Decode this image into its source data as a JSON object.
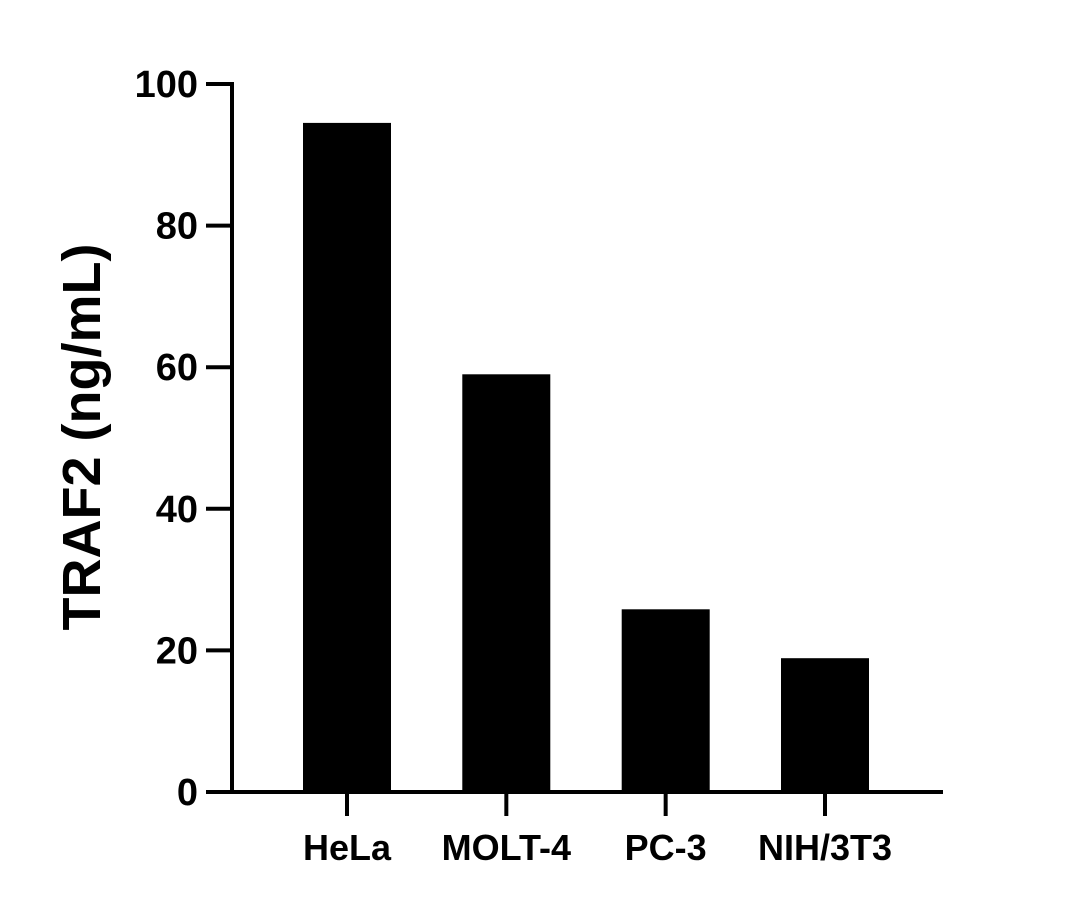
{
  "chart_data": {
    "type": "bar",
    "title": "",
    "xlabel": "",
    "ylabel": "TRAF2 (ng/mL)",
    "categories": [
      "HeLa",
      "MOLT-4",
      "PC-3",
      "NIH/3T3"
    ],
    "values": [
      94.5,
      59.0,
      25.8,
      18.9
    ],
    "ylim": [
      0,
      100
    ],
    "yticks": [
      0,
      20,
      40,
      60,
      80,
      100
    ],
    "grid": false,
    "legend": "none",
    "bar_color": "#000000",
    "axis_color": "#000000"
  }
}
